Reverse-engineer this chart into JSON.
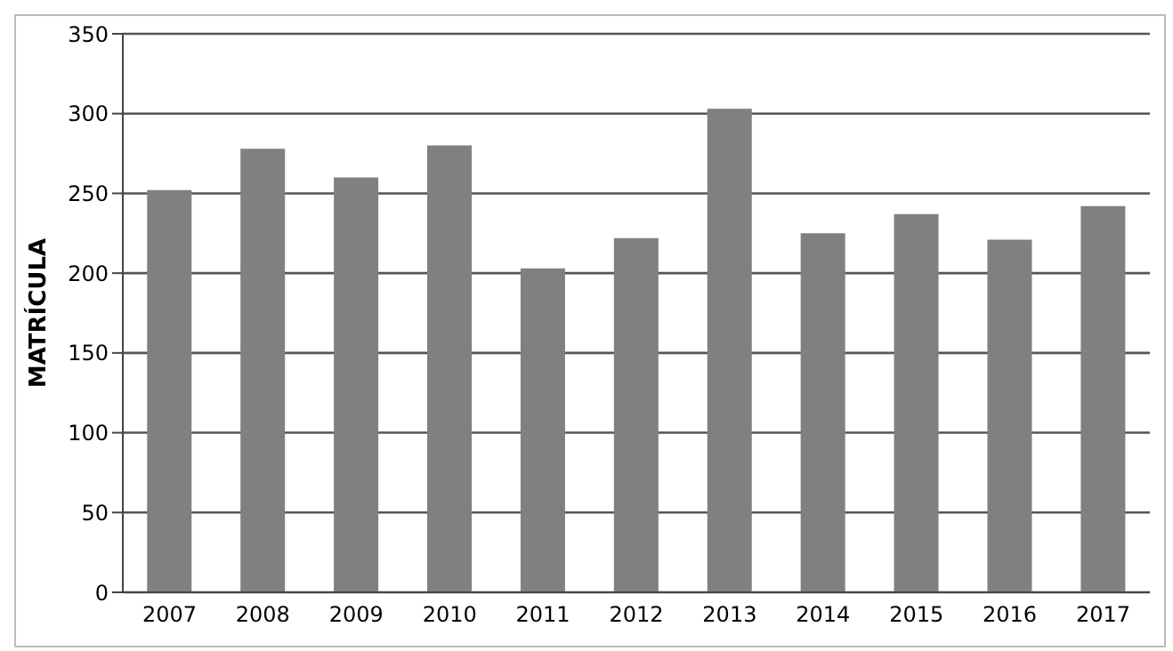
{
  "chart_data": {
    "type": "bar",
    "ylabel": "MATRÍCULA",
    "categories": [
      "2007",
      "2008",
      "2009",
      "2010",
      "2011",
      "2012",
      "2013",
      "2014",
      "2015",
      "2016",
      "2017"
    ],
    "values": [
      252,
      278,
      260,
      280,
      203,
      222,
      303,
      225,
      237,
      221,
      242
    ],
    "color": "#808080",
    "ylim": [
      0,
      350
    ],
    "yticks": [
      0,
      50,
      100,
      150,
      200,
      250,
      300,
      350
    ],
    "grid": "y"
  }
}
